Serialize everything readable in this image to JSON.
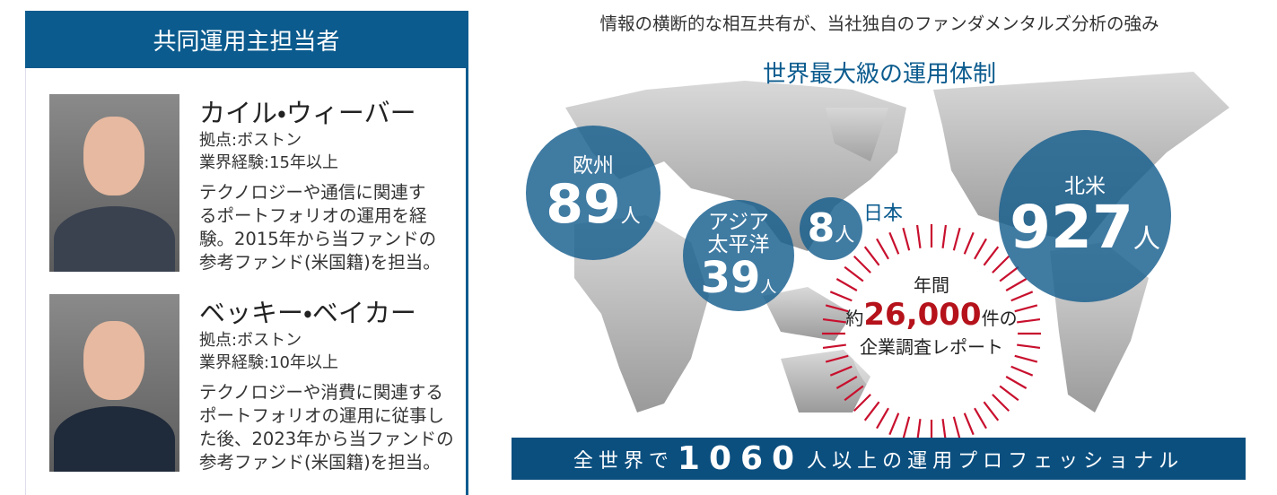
{
  "managers": {
    "header": "共同運用主担当者",
    "people": [
      {
        "name": "カイル・ウィーバー",
        "base": "拠点:ボストン",
        "experience": "業界経験:15年以上",
        "description": [
          "テクノロジーや通信に関連す",
          "るポートフォリオの運用を経",
          "験。2015年から当ファンドの",
          "参考ファンド(米国籍)を担当。"
        ]
      },
      {
        "name": "ベッキー・ベイカー",
        "base": "拠点:ボストン",
        "experience": "業界経験:10年以上",
        "description": [
          "テクノロジーや消費に関連する",
          "ポートフォリオの運用に従事し",
          "た後、2023年から当ファンドの",
          "参考ファンド(米国籍)を担当。"
        ]
      }
    ]
  },
  "map": {
    "subtitle": "情報の横断的な相互共有が、当社独自のファンダメンタルズ分析の強み",
    "title": "世界最大級の運用体制",
    "regions": [
      {
        "name": [
          "欧州"
        ],
        "count": "89",
        "unit": "人"
      },
      {
        "name": [
          "アジア",
          "太平洋"
        ],
        "count": "39",
        "unit": "人"
      },
      {
        "name": [],
        "count": "8",
        "unit": "人",
        "label": "日本"
      },
      {
        "name": [
          "北米"
        ],
        "count": "927",
        "unit": "人"
      }
    ],
    "reports": {
      "line1": "年間",
      "prefix": "約",
      "number": "26,000",
      "suffix": "件の",
      "line3": "企業調査レポート"
    },
    "banner": {
      "prefix": "全世界で",
      "number": "1060",
      "suffix": "人以上の運用プロフェッショナル"
    }
  }
}
